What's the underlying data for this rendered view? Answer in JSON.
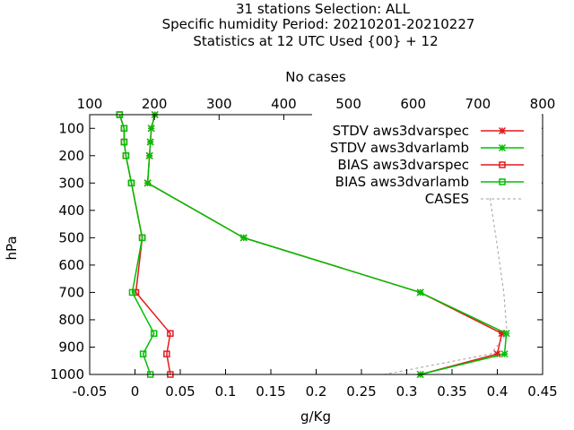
{
  "chart_data": {
    "type": "line",
    "title_lines": [
      "31 stations Selection: ALL",
      "Specific humidity  Period: 20210201-20210227",
      "Statistics at 12 UTC  Used {00} + 12"
    ],
    "xlabel": "g/Kg",
    "ylabel": "hPa",
    "x2label": "No cases",
    "xlim": [
      -0.05,
      0.45
    ],
    "x2lim": [
      100,
      800
    ],
    "ylim": [
      1000,
      50
    ],
    "x_ticks": [
      "-0.05",
      "0",
      "0.05",
      "0.1",
      "0.15",
      "0.2",
      "0.25",
      "0.3",
      "0.35",
      "0.4",
      "0.45"
    ],
    "x2_ticks": [
      "100",
      "200",
      "300",
      "400",
      "500",
      "600",
      "700",
      "800"
    ],
    "y_ticks": [
      "100",
      "200",
      "300",
      "400",
      "500",
      "600",
      "700",
      "800",
      "900",
      "1000"
    ],
    "legend_position": "top-right",
    "series": [
      {
        "name": "STDV aws3dvarspec",
        "color": "#e41a1c",
        "marker": "x-star",
        "axis": "x1",
        "points": [
          [
            0.022,
            50
          ],
          [
            0.018,
            100
          ],
          [
            0.017,
            150
          ],
          [
            0.016,
            200
          ],
          [
            0.014,
            300
          ],
          [
            0.12,
            500
          ],
          [
            0.315,
            700
          ],
          [
            0.405,
            850
          ],
          [
            0.4,
            925
          ],
          [
            0.315,
            1000
          ]
        ]
      },
      {
        "name": "STDV aws3dvarlamb",
        "color": "#00bf00",
        "marker": "x-star",
        "axis": "x1",
        "points": [
          [
            0.022,
            50
          ],
          [
            0.018,
            100
          ],
          [
            0.017,
            150
          ],
          [
            0.016,
            200
          ],
          [
            0.014,
            300
          ],
          [
            0.12,
            500
          ],
          [
            0.315,
            700
          ],
          [
            0.41,
            850
          ],
          [
            0.408,
            925
          ],
          [
            0.315,
            1000
          ]
        ]
      },
      {
        "name": "BIAS aws3dvarspec",
        "color": "#e41a1c",
        "marker": "square",
        "axis": "x1",
        "points": [
          [
            -0.017,
            50
          ],
          [
            -0.012,
            100
          ],
          [
            -0.012,
            150
          ],
          [
            -0.01,
            200
          ],
          [
            -0.004,
            300
          ],
          [
            0.008,
            500
          ],
          [
            0.001,
            700
          ],
          [
            0.039,
            850
          ],
          [
            0.035,
            925
          ],
          [
            0.039,
            1000
          ]
        ]
      },
      {
        "name": "BIAS aws3dvarlamb",
        "color": "#00bf00",
        "marker": "square",
        "axis": "x1",
        "points": [
          [
            -0.017,
            50
          ],
          [
            -0.012,
            100
          ],
          [
            -0.012,
            150
          ],
          [
            -0.01,
            200
          ],
          [
            -0.004,
            300
          ],
          [
            0.008,
            500
          ],
          [
            -0.003,
            700
          ],
          [
            0.021,
            850
          ],
          [
            0.009,
            925
          ],
          [
            0.017,
            1000
          ]
        ]
      },
      {
        "name": "CASES",
        "color": "#a0a0a0",
        "marker": "none",
        "dash": true,
        "axis": "x2",
        "points": [
          [
            648,
            50
          ],
          [
            683,
            150
          ],
          [
            715,
            300
          ],
          [
            728,
            500
          ],
          [
            740,
            700
          ],
          [
            745,
            850
          ],
          [
            720,
            925
          ],
          [
            555,
            1000
          ]
        ]
      }
    ]
  }
}
